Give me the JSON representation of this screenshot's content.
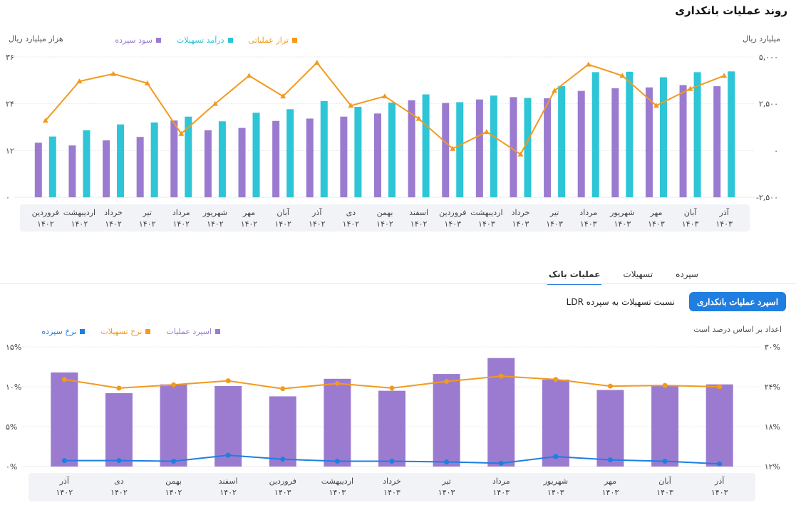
{
  "page_title": "روند عملیات بانکداری",
  "chart1_left_unit": "هزار میلیارد ریال",
  "chart1_right_unit": "میلیارد ریال",
  "chart1_legend": [
    {
      "label": "تراز عملیاتی",
      "color": "#f29a1d"
    },
    {
      "label": "درآمد تسهیلات",
      "color": "#2ec5d6"
    },
    {
      "label": "سود سپرده",
      "color": "#9b7bd0"
    }
  ],
  "tabs": [
    {
      "label": "سپرده",
      "active": false
    },
    {
      "label": "تسهیلات",
      "active": false
    },
    {
      "label": "عملیات بانک",
      "active": true
    }
  ],
  "buttons": {
    "primary": "اسپرد عملیات بانکداری",
    "secondary": "نسبت تسهیلات به سپرده LDR"
  },
  "chart2_left_unit": "اعداد بر اساس درصد است",
  "chart2_legend": [
    {
      "label": "اسپرد عملیات",
      "color": "#9b7bd0"
    },
    {
      "label": "نرخ تسهیلات",
      "color": "#f29a1d"
    },
    {
      "label": "نرخ سپرده",
      "color": "#1f7ee0"
    }
  ],
  "chart_data": [
    {
      "type": "bar",
      "categories": [
        "فروردین ۱۴۰۲",
        "اردیبهشت ۱۴۰۲",
        "خرداد ۱۴۰۲",
        "تیر ۱۴۰۲",
        "مرداد ۱۴۰۲",
        "شهریور ۱۴۰۲",
        "مهر ۱۴۰۲",
        "آبان ۱۴۰۲",
        "آذر ۱۴۰۲",
        "دی ۱۴۰۲",
        "بهمن ۱۴۰۲",
        "اسفند ۱۴۰۲",
        "فروردین ۱۴۰۳",
        "اردیبهشت ۱۴۰۳",
        "خرداد ۱۴۰۳",
        "تیر ۱۴۰۳",
        "مرداد ۱۴۰۳",
        "شهریور ۱۴۰۳",
        "مهر ۱۴۰۳",
        "آبان ۱۴۰۳",
        "آذر ۱۴۰۳"
      ],
      "category_months": [
        "فروردین",
        "اردیبهشت",
        "خرداد",
        "تیر",
        "مرداد",
        "شهریور",
        "مهر",
        "آبان",
        "آذر",
        "دی",
        "بهمن",
        "اسفند",
        "فروردین",
        "اردیبهشت",
        "خرداد",
        "تیر",
        "مرداد",
        "شهریور",
        "مهر",
        "آبان",
        "آذر"
      ],
      "category_years": [
        "۱۴۰۲",
        "۱۴۰۲",
        "۱۴۰۲",
        "۱۴۰۲",
        "۱۴۰۲",
        "۱۴۰۲",
        "۱۴۰۲",
        "۱۴۰۲",
        "۱۴۰۲",
        "۱۴۰۲",
        "۱۴۰۲",
        "۱۴۰۲",
        "۱۴۰۳",
        "۱۴۰۳",
        "۱۴۰۳",
        "۱۴۰۳",
        "۱۴۰۳",
        "۱۴۰۳",
        "۱۴۰۳",
        "۱۴۰۳",
        "۱۴۰۳"
      ],
      "series": [
        {
          "name": "سود سپرده",
          "type": "bar",
          "axis": "left",
          "color": "#9b7bd0",
          "values": [
            14,
            13.3,
            14.6,
            15.5,
            19.7,
            17.2,
            17.8,
            19.6,
            20.2,
            20.7,
            21.5,
            24.9,
            24.2,
            25.1,
            25.7,
            25.4,
            27.3,
            28,
            28.2,
            28.8,
            28.5
          ]
        },
        {
          "name": "درآمد تسهیلات",
          "type": "bar",
          "axis": "left",
          "color": "#2ec5d6",
          "values": [
            15.6,
            17.2,
            18.7,
            19.2,
            20.7,
            19.5,
            21.7,
            22.6,
            24.7,
            23.2,
            24.3,
            26.4,
            24.4,
            26.1,
            25.5,
            28.5,
            32.1,
            32.2,
            30.8,
            32.1,
            32.3
          ]
        },
        {
          "name": "تراز عملیاتی",
          "type": "line",
          "axis": "right",
          "color": "#f29a1d",
          "values": [
            1600,
            3700,
            4100,
            3600,
            900,
            2500,
            4000,
            2900,
            4700,
            2400,
            2900,
            1700,
            100,
            1000,
            -200,
            3200,
            4600,
            4000,
            2400,
            3300,
            4000
          ]
        }
      ],
      "left_axis": {
        "ticks": [
          "۳۶",
          "۲۴",
          "۱۲",
          "۰"
        ],
        "ylim": [
          0,
          36
        ]
      },
      "right_axis": {
        "ticks": [
          "۵,۰۰۰",
          "۲,۵۰۰",
          "۰",
          "-۲,۵۰۰"
        ],
        "ylim": [
          -2500,
          5000
        ]
      }
    },
    {
      "type": "bar",
      "categories": [
        "آذر ۱۴۰۲",
        "دی ۱۴۰۲",
        "بهمن ۱۴۰۲",
        "اسفند ۱۴۰۲",
        "فروردین ۱۴۰۳",
        "اردیبهشت ۱۴۰۳",
        "خرداد ۱۴۰۳",
        "تیر ۱۴۰۳",
        "مرداد ۱۴۰۳",
        "شهریور ۱۴۰۳",
        "مهر ۱۴۰۳",
        "آبان ۱۴۰۳",
        "آذر ۱۴۰۳"
      ],
      "category_months": [
        "آذر",
        "دی",
        "بهمن",
        "اسفند",
        "فروردین",
        "اردیبهشت",
        "خرداد",
        "تیر",
        "مرداد",
        "شهریور",
        "مهر",
        "آبان",
        "آذر"
      ],
      "category_years": [
        "۱۴۰۲",
        "۱۴۰۲",
        "۱۴۰۲",
        "۱۴۰۲",
        "۱۴۰۳",
        "۱۴۰۳",
        "۱۴۰۳",
        "۱۴۰۳",
        "۱۴۰۳",
        "۱۴۰۳",
        "۱۴۰۳",
        "۱۴۰۳",
        "۱۴۰۳"
      ],
      "series": [
        {
          "name": "اسپرد عملیات",
          "type": "bar",
          "axis": "left",
          "color": "#9b7bd0",
          "values": [
            11.8,
            9.2,
            10.3,
            10.1,
            8.8,
            11,
            9.5,
            11.6,
            13.6,
            10.9,
            9.6,
            10.1,
            10.3
          ]
        },
        {
          "name": "نرخ تسهیلات",
          "type": "line",
          "axis": "right",
          "color": "#f29a1d",
          "values": [
            25.1,
            23.8,
            24.3,
            24.9,
            23.7,
            24.5,
            23.8,
            24.8,
            25.6,
            25.1,
            24.1,
            24.2,
            24
          ]
        },
        {
          "name": "نرخ سپرده",
          "type": "line",
          "axis": "right",
          "color": "#1f7ee0",
          "values": [
            12.9,
            12.9,
            12.8,
            13.7,
            13.1,
            12.8,
            12.8,
            12.7,
            12.5,
            13.5,
            13,
            12.8,
            12.4
          ]
        }
      ],
      "left_axis": {
        "ticks": [
          "۱۵%",
          "۱۰%",
          "۵%",
          "۰%"
        ],
        "ylim": [
          0,
          15
        ]
      },
      "right_axis": {
        "ticks": [
          "۳۰%",
          "۲۴%",
          "۱۸%",
          "۱۲%"
        ],
        "ylim": [
          12,
          30
        ]
      }
    }
  ]
}
